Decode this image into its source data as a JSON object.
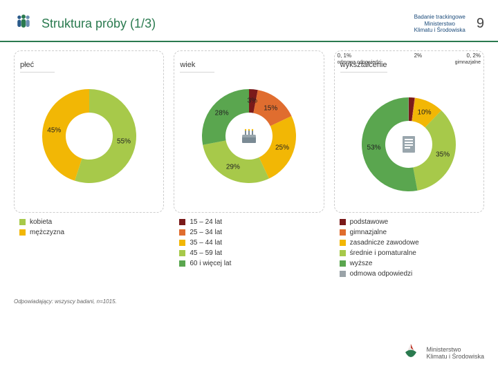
{
  "header": {
    "title": "Struktura próby (1/3)",
    "tracking_line1": "Badanie trackingowe",
    "tracking_line2": "Ministerstwo",
    "tracking_line3": "Klimatu i Środowiska",
    "page_number": "9"
  },
  "panels": {
    "plec": {
      "title": "płeć",
      "type": "donut",
      "slices": [
        {
          "label": "55%",
          "value": 55,
          "color": "#a7c94a"
        },
        {
          "label": "45%",
          "value": 45,
          "color": "#f2b705"
        }
      ],
      "legend": [
        {
          "swatch": "#a7c94a",
          "text": "kobieta"
        },
        {
          "swatch": "#f2b705",
          "text": "mężczyzna"
        }
      ]
    },
    "wiek": {
      "title": "wiek",
      "type": "donut",
      "slices": [
        {
          "label": "3%",
          "value": 3,
          "color": "#7a1a1a"
        },
        {
          "label": "15%",
          "value": 15,
          "color": "#e06d2f"
        },
        {
          "label": "25%",
          "value": 25,
          "color": "#f2b705"
        },
        {
          "label": "29%",
          "value": 29,
          "color": "#a7c94a"
        },
        {
          "label": "28%",
          "value": 28,
          "color": "#5aa64f"
        }
      ],
      "legend": [
        {
          "swatch": "#7a1a1a",
          "text": "15 – 24 lat"
        },
        {
          "swatch": "#e06d2f",
          "text": "25 – 34 lat"
        },
        {
          "swatch": "#f2b705",
          "text": "35 – 44 lat"
        },
        {
          "swatch": "#a7c94a",
          "text": "45 – 59 lat"
        },
        {
          "swatch": "#5aa64f",
          "text": "60 i więcej lat"
        }
      ]
    },
    "wyksz": {
      "title": "wykształcenie",
      "type": "donut",
      "callout_left_val": "0, 1%",
      "callout_left_lbl": "odmowa odpowiedzi",
      "callout_right_val": "0, 2%",
      "callout_right_lbl": "gimnazjalne",
      "callout_top_val": "2%",
      "slices": [
        {
          "label": "2%",
          "value": 2,
          "color": "#7a1a1a"
        },
        {
          "label": "0,2%",
          "value": 0.2,
          "color": "#e06d2f"
        },
        {
          "label": "10%",
          "value": 10,
          "color": "#f2b705"
        },
        {
          "label": "35%",
          "value": 35,
          "color": "#a7c94a"
        },
        {
          "label": "53%",
          "value": 53,
          "color": "#5aa64f"
        },
        {
          "label": "0,1%",
          "value": 0.1,
          "color": "#9aa3a8"
        }
      ],
      "legend": [
        {
          "swatch": "#7a1a1a",
          "text": "podstawowe"
        },
        {
          "swatch": "#e06d2f",
          "text": "gimnazjalne"
        },
        {
          "swatch": "#f2b705",
          "text": "zasadnicze zawodowe"
        },
        {
          "swatch": "#a7c94a",
          "text": "średnie i pomaturalne"
        },
        {
          "swatch": "#5aa64f",
          "text": "wyższe"
        },
        {
          "swatch": "#9aa3a8",
          "text": "odmowa odpowiedzi"
        }
      ]
    }
  },
  "footnote": "Odpowiadający: wszyscy badani, n=1015.",
  "footer": {
    "ministry_line1": "Ministerstwo",
    "ministry_line2": "Klimatu i Środowiska"
  },
  "style": {
    "background_color": "#ffffff",
    "header_rule_color": "#2a7a4f",
    "dashed_border_color": "#cccccc",
    "font_family": "Arial",
    "title_color": "#2a7a4f",
    "title_fontsize": 18,
    "panel_title_fontsize": 11,
    "label_fontsize": 10,
    "donut_inner_ratio": 0.5,
    "donut_outer_radius": 68
  }
}
